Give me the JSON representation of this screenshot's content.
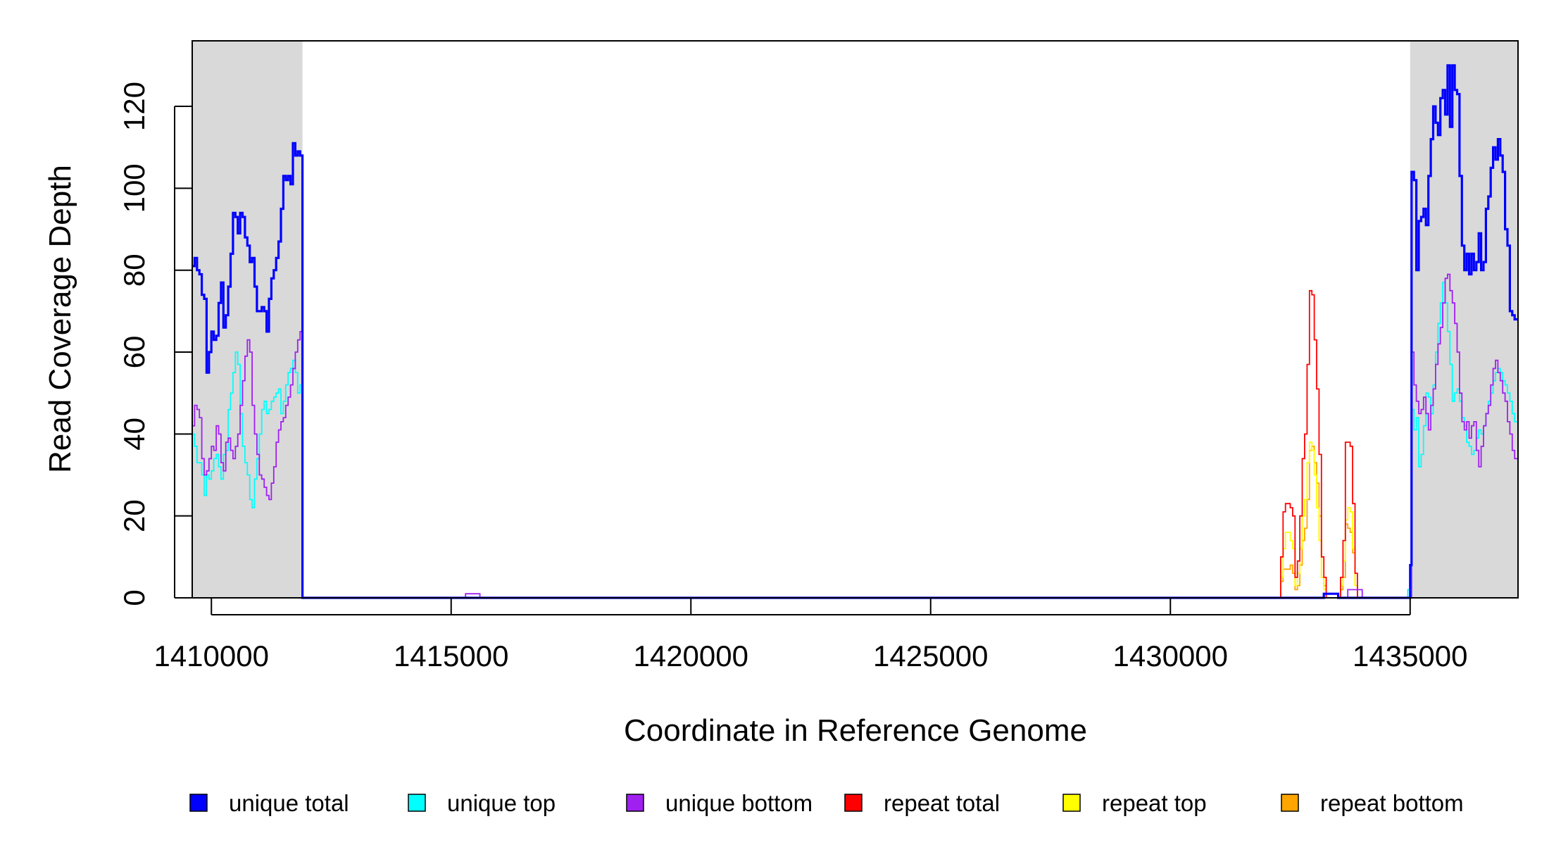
{
  "chart_data": {
    "type": "line",
    "xlabel": "Coordinate in Reference Genome",
    "ylabel": "Read Coverage Depth",
    "xlim": [
      1409600,
      1437250
    ],
    "ylim": [
      0,
      136
    ],
    "x_ticks": [
      1410000,
      1415000,
      1420000,
      1425000,
      1430000,
      1435000
    ],
    "x_tick_labels": [
      "1410000",
      "1415000",
      "1420000",
      "1425000",
      "1430000",
      "1435000"
    ],
    "y_ticks": [
      0,
      20,
      40,
      60,
      80,
      100,
      120
    ],
    "y_tick_labels": [
      "0",
      "20",
      "40",
      "60",
      "80",
      "100",
      "120"
    ],
    "shaded_regions": [
      [
        1409600,
        1411900
      ],
      [
        1435000,
        1437250
      ]
    ],
    "grid": false,
    "legend_position": "bottom",
    "series": [
      {
        "name": "unique total",
        "color": "#0000FF",
        "x": [
          1409600,
          1409650,
          1409700,
          1409750,
          1409800,
          1409850,
          1409900,
          1409950,
          1410000,
          1410050,
          1410100,
          1410150,
          1410200,
          1410250,
          1410300,
          1410350,
          1410400,
          1410450,
          1410500,
          1410550,
          1410600,
          1410650,
          1410700,
          1410750,
          1410800,
          1410850,
          1410900,
          1410950,
          1411000,
          1411050,
          1411100,
          1411150,
          1411200,
          1411250,
          1411300,
          1411350,
          1411400,
          1411450,
          1411500,
          1411550,
          1411600,
          1411650,
          1411700,
          1411750,
          1411800,
          1411850,
          1411900,
          1411920,
          1412000,
          1415000,
          1432500,
          1433000,
          1433200,
          1433500,
          1434000,
          1434800,
          1434950,
          1435000,
          1435030,
          1435080,
          1435130,
          1435180,
          1435230,
          1435280,
          1435330,
          1435380,
          1435430,
          1435480,
          1435530,
          1435580,
          1435630,
          1435680,
          1435730,
          1435780,
          1435830,
          1435880,
          1435930,
          1435980,
          1436030,
          1436080,
          1436130,
          1436180,
          1436230,
          1436280,
          1436330,
          1436380,
          1436430,
          1436480,
          1436530,
          1436580,
          1436630,
          1436680,
          1436730,
          1436780,
          1436830,
          1436880,
          1436930,
          1436980,
          1437030,
          1437080,
          1437130,
          1437180,
          1437250
        ],
        "y": [
          81,
          83,
          80,
          79,
          74,
          73,
          55,
          60,
          65,
          63,
          64,
          72,
          77,
          66,
          69,
          76,
          84,
          94,
          93,
          89,
          94,
          93,
          88,
          86,
          82,
          83,
          76,
          70,
          70,
          71,
          70,
          65,
          73,
          78,
          80,
          83,
          87,
          95,
          103,
          102,
          103,
          101,
          111,
          108,
          109,
          108,
          0,
          0,
          0,
          0,
          0,
          0,
          1,
          0,
          0,
          0,
          0,
          8,
          104,
          102,
          80,
          92,
          93,
          95,
          91,
          103,
          112,
          120,
          116,
          113,
          122,
          124,
          118,
          130,
          115,
          130,
          124,
          123,
          103,
          86,
          80,
          84,
          79,
          84,
          80,
          82,
          89,
          80,
          82,
          95,
          98,
          105,
          110,
          107,
          112,
          108,
          104,
          90,
          86,
          70,
          69,
          68,
          68
        ]
      },
      {
        "name": "unique top",
        "color": "#00FFFF",
        "x": [
          1409600,
          1409650,
          1409700,
          1409750,
          1409800,
          1409850,
          1409900,
          1409950,
          1410000,
          1410050,
          1410100,
          1410150,
          1410200,
          1410250,
          1410300,
          1410350,
          1410400,
          1410450,
          1410500,
          1410550,
          1410600,
          1410650,
          1410700,
          1410750,
          1410800,
          1410850,
          1410900,
          1410950,
          1411000,
          1411050,
          1411100,
          1411150,
          1411200,
          1411250,
          1411300,
          1411350,
          1411400,
          1411450,
          1411500,
          1411550,
          1411600,
          1411650,
          1411700,
          1411750,
          1411800,
          1411850,
          1411900,
          1411920,
          1415000,
          1432500,
          1434000,
          1434800,
          1434950,
          1435000,
          1435030,
          1435080,
          1435130,
          1435180,
          1435230,
          1435280,
          1435330,
          1435380,
          1435430,
          1435480,
          1435530,
          1435580,
          1435630,
          1435680,
          1435730,
          1435780,
          1435830,
          1435880,
          1435930,
          1435980,
          1436030,
          1436080,
          1436130,
          1436180,
          1436230,
          1436280,
          1436330,
          1436380,
          1436430,
          1436480,
          1436530,
          1436580,
          1436630,
          1436680,
          1436730,
          1436780,
          1436830,
          1436880,
          1436930,
          1436980,
          1437030,
          1437080,
          1437130,
          1437180,
          1437250
        ],
        "y": [
          40,
          37,
          33,
          33,
          30,
          25,
          30,
          29,
          31,
          34,
          35,
          32,
          29,
          35,
          36,
          46,
          50,
          55,
          60,
          57,
          45,
          37,
          33,
          30,
          24,
          22,
          29,
          34,
          40,
          46,
          48,
          45,
          46,
          48,
          49,
          50,
          51,
          45,
          48,
          52,
          55,
          56,
          58,
          55,
          50,
          52,
          0,
          0,
          0,
          0,
          0,
          0,
          2,
          0,
          46,
          41,
          44,
          32,
          35,
          42,
          50,
          49,
          45,
          52,
          60,
          67,
          72,
          77,
          72,
          65,
          57,
          48,
          50,
          51,
          48,
          44,
          42,
          38,
          37,
          35,
          36,
          39,
          41,
          40,
          42,
          45,
          48,
          50,
          53,
          55,
          56,
          55,
          53,
          52,
          50,
          48,
          45,
          43,
          41
        ]
      },
      {
        "name": "unique bottom",
        "color": "#A020F0",
        "x": [
          1409600,
          1409650,
          1409700,
          1409750,
          1409800,
          1409850,
          1409900,
          1409950,
          1410000,
          1410050,
          1410100,
          1410150,
          1410200,
          1410250,
          1410300,
          1410350,
          1410400,
          1410450,
          1410500,
          1410550,
          1410600,
          1410650,
          1410700,
          1410750,
          1410800,
          1410850,
          1410900,
          1410950,
          1411000,
          1411050,
          1411100,
          1411150,
          1411200,
          1411250,
          1411300,
          1411350,
          1411400,
          1411450,
          1411500,
          1411550,
          1411600,
          1411650,
          1411700,
          1411750,
          1411800,
          1411850,
          1411900,
          1411920,
          1415000,
          1415300,
          1415600,
          1432500,
          1433500,
          1433700,
          1434000,
          1434800,
          1434950,
          1435000,
          1435030,
          1435080,
          1435130,
          1435180,
          1435230,
          1435280,
          1435330,
          1435380,
          1435430,
          1435480,
          1435530,
          1435580,
          1435630,
          1435680,
          1435730,
          1435780,
          1435830,
          1435880,
          1435930,
          1435980,
          1436030,
          1436080,
          1436130,
          1436180,
          1436230,
          1436280,
          1436330,
          1436380,
          1436430,
          1436480,
          1436530,
          1436580,
          1436630,
          1436680,
          1436730,
          1436780,
          1436830,
          1436880,
          1436930,
          1436980,
          1437030,
          1437080,
          1437130,
          1437180,
          1437250
        ],
        "y": [
          42,
          47,
          46,
          44,
          34,
          30,
          31,
          34,
          37,
          36,
          42,
          40,
          33,
          31,
          38,
          39,
          36,
          34,
          37,
          40,
          47,
          53,
          59,
          63,
          60,
          47,
          40,
          35,
          30,
          29,
          27,
          25,
          24,
          28,
          32,
          38,
          41,
          43,
          44,
          47,
          49,
          52,
          56,
          60,
          63,
          65,
          0,
          0,
          0,
          1,
          0,
          0,
          0,
          2,
          0,
          0,
          0,
          0,
          60,
          52,
          48,
          45,
          46,
          49,
          45,
          41,
          47,
          51,
          57,
          62,
          66,
          72,
          78,
          79,
          75,
          72,
          67,
          60,
          50,
          43,
          41,
          43,
          39,
          42,
          43,
          36,
          32,
          37,
          42,
          45,
          47,
          52,
          56,
          58,
          55,
          53,
          50,
          48,
          43,
          40,
          36,
          34,
          34
        ]
      },
      {
        "name": "repeat total",
        "color": "#FF0000",
        "x": [
          1409600,
          1432250,
          1432300,
          1432350,
          1432400,
          1432450,
          1432500,
          1432550,
          1432600,
          1432650,
          1432700,
          1432750,
          1432800,
          1432850,
          1432900,
          1432950,
          1433000,
          1433050,
          1433100,
          1433150,
          1433200,
          1433250,
          1433300,
          1433350,
          1433400,
          1433450,
          1433500,
          1433550,
          1433600,
          1433650,
          1433700,
          1433750,
          1433800,
          1433850,
          1433900,
          1433950,
          1434000,
          1434050,
          1434100,
          1434150,
          1437250
        ],
        "y": [
          0,
          0,
          10,
          21,
          23,
          23,
          22,
          20,
          5,
          9,
          20,
          34,
          40,
          57,
          75,
          74,
          63,
          51,
          35,
          10,
          5,
          0,
          0,
          0,
          0,
          0,
          0,
          5,
          14,
          38,
          38,
          37,
          23,
          6,
          0,
          0,
          0,
          0,
          0,
          0,
          0
        ]
      },
      {
        "name": "repeat top",
        "color": "#FFFF00",
        "x": [
          1409600,
          1432250,
          1432300,
          1432350,
          1432400,
          1432450,
          1432500,
          1432550,
          1432600,
          1432650,
          1432700,
          1432750,
          1432800,
          1432850,
          1432900,
          1432950,
          1433000,
          1433050,
          1433100,
          1433150,
          1433200,
          1433250,
          1433300,
          1433350,
          1433400,
          1433450,
          1433500,
          1433550,
          1433600,
          1433650,
          1433700,
          1433750,
          1433800,
          1433850,
          1433900,
          1433950,
          1434000,
          1434050,
          1437250
        ],
        "y": [
          0,
          0,
          5,
          12,
          16,
          16,
          14,
          12,
          3,
          6,
          12,
          20,
          24,
          33,
          38,
          36,
          30,
          22,
          14,
          5,
          2,
          0,
          0,
          0,
          0,
          0,
          0,
          3,
          9,
          19,
          22,
          21,
          12,
          3,
          0,
          0,
          0,
          0,
          0
        ]
      },
      {
        "name": "repeat bottom",
        "color": "#FFA500",
        "x": [
          1409600,
          1432250,
          1432300,
          1432350,
          1432400,
          1432450,
          1432500,
          1432550,
          1432600,
          1432650,
          1432700,
          1432750,
          1432800,
          1432850,
          1432900,
          1432950,
          1433000,
          1433050,
          1433100,
          1433150,
          1433200,
          1433250,
          1433300,
          1433350,
          1433400,
          1433450,
          1433500,
          1433550,
          1433600,
          1433650,
          1433700,
          1433750,
          1433800,
          1433850,
          1433900,
          1433950,
          1434000,
          1434050,
          1437250
        ],
        "y": [
          0,
          0,
          4,
          7,
          7,
          7,
          8,
          6,
          2,
          3,
          8,
          14,
          17,
          24,
          36,
          37,
          33,
          28,
          20,
          5,
          3,
          0,
          0,
          0,
          0,
          0,
          0,
          2,
          5,
          18,
          17,
          16,
          11,
          3,
          0,
          0,
          0,
          0,
          0
        ]
      }
    ]
  }
}
